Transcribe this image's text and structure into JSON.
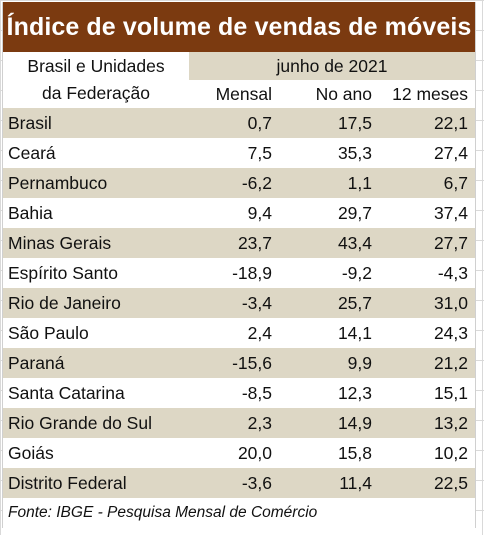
{
  "title": "Índice de volume de vendas de móveis",
  "header": {
    "region_line1": "Brasil e Unidades",
    "region_line2": "da Federação",
    "period": "junho de 2021",
    "col_mensal": "Mensal",
    "col_ano": "No ano",
    "col_12m": "12 meses"
  },
  "rows": [
    {
      "name": "Brasil",
      "mensal": "0,7",
      "ano": "17,5",
      "m12": "22,1"
    },
    {
      "name": "Ceará",
      "mensal": "7,5",
      "ano": "35,3",
      "m12": "27,4"
    },
    {
      "name": "Pernambuco",
      "mensal": "-6,2",
      "ano": "1,1",
      "m12": "6,7"
    },
    {
      "name": "Bahia",
      "mensal": "9,4",
      "ano": "29,7",
      "m12": "37,4"
    },
    {
      "name": "Minas Gerais",
      "mensal": "23,7",
      "ano": "43,4",
      "m12": "27,7"
    },
    {
      "name": "Espírito Santo",
      "mensal": "-18,9",
      "ano": "-9,2",
      "m12": "-4,3"
    },
    {
      "name": "Rio de Janeiro",
      "mensal": "-3,4",
      "ano": "25,7",
      "m12": "31,0"
    },
    {
      "name": "São Paulo",
      "mensal": "2,4",
      "ano": "14,1",
      "m12": "24,3"
    },
    {
      "name": "Paraná",
      "mensal": "-15,6",
      "ano": "9,9",
      "m12": "21,2"
    },
    {
      "name": "Santa Catarina",
      "mensal": "-8,5",
      "ano": "12,3",
      "m12": "15,1"
    },
    {
      "name": "Rio Grande do Sul",
      "mensal": "2,3",
      "ano": "14,9",
      "m12": "13,2"
    },
    {
      "name": "Goiás",
      "mensal": "20,0",
      "ano": "15,8",
      "m12": "10,2"
    },
    {
      "name": "Distrito Federal",
      "mensal": "-3,6",
      "ano": "11,4",
      "m12": "22,5"
    }
  ],
  "source": "Fonte: IBGE - Pesquisa Mensal de Comércio",
  "colors": {
    "title_bg": "#7b3a10",
    "shade": "#ddd7c5"
  }
}
